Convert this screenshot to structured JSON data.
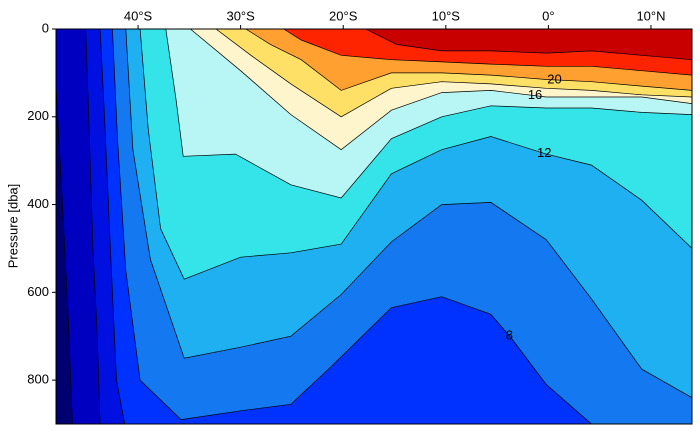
{
  "chart_data": {
    "type": "contour",
    "ylabel": "Pressure [dba]",
    "xlim": [
      -48,
      14
    ],
    "ylim": [
      0,
      900
    ],
    "y_inverted": true,
    "x_axis_position": "top",
    "xticks": [
      {
        "value": -40,
        "label": "40°S"
      },
      {
        "value": -30,
        "label": "30°S"
      },
      {
        "value": -20,
        "label": "20°S"
      },
      {
        "value": -10,
        "label": "10°S"
      },
      {
        "value": 0,
        "label": "0°"
      },
      {
        "value": 10,
        "label": "10°N"
      }
    ],
    "yticks": [
      0,
      200,
      400,
      600,
      800
    ],
    "base_color": "#000070",
    "line_color": "#000000",
    "contours": [
      {
        "level": 2,
        "color": "#0000c0",
        "x": [
          -48,
          -47.4,
          -46.8,
          -46.4
        ],
        "y": [
          125,
          390,
          660,
          900
        ]
      },
      {
        "level": 4,
        "color": "#0010e0",
        "x": [
          -45.1,
          -44.8,
          -44.4,
          -44.0,
          -43.7
        ],
        "y": [
          0,
          205,
          500,
          685,
          900
        ]
      },
      {
        "level": 6,
        "color": "#0032ff",
        "x": [
          -43.7,
          -43.3,
          -42.7,
          -42.1,
          -41.3
        ],
        "y": [
          0,
          185,
          500,
          800,
          900
        ]
      },
      {
        "level": 8,
        "color": "#1478f0",
        "x": [
          -42.5,
          -42.0,
          -41.2,
          -39.8,
          -35.8,
          -30.0,
          -25.1,
          -21.2,
          -15.3,
          -10.4,
          -5.6,
          -3.6,
          -0.2,
          4.2
        ],
        "y": [
          0,
          250,
          550,
          800,
          890,
          870,
          855,
          770,
          635,
          610,
          650,
          705,
          810,
          900
        ]
      },
      {
        "level": 10,
        "color": "#1eb0f0",
        "x": [
          -41.2,
          -40.5,
          -38.8,
          -35.5,
          -30.0,
          -25.1,
          -20.2,
          -15.3,
          -10.4,
          -5.6,
          -0.2,
          4.2,
          9.1,
          14
        ],
        "y": [
          0,
          275,
          525,
          750,
          725,
          700,
          605,
          485,
          400,
          395,
          480,
          615,
          775,
          840
        ]
      },
      {
        "level": 12,
        "color": "#35e4e8",
        "x": [
          -39.8,
          -39.0,
          -37.8,
          -35.5,
          -30.0,
          -25.1,
          -20.2,
          -15.3,
          -10.4,
          -5.6,
          -0.2,
          4.2,
          9.1,
          14
        ],
        "y": [
          0,
          230,
          455,
          570,
          520,
          510,
          490,
          330,
          275,
          245,
          285,
          310,
          390,
          500
        ]
      },
      {
        "level": 14,
        "color": "#b8f5f5",
        "x": [
          -37.3,
          -36.3,
          -35.6,
          -30.5,
          -25.1,
          -20.2,
          -15.3,
          -10.4,
          -5.6,
          -0.2,
          4.2,
          9.1,
          14
        ],
        "y": [
          0,
          160,
          290,
          285,
          355,
          385,
          250,
          200,
          175,
          180,
          180,
          190,
          195
        ]
      },
      {
        "level": 16,
        "color": "#fff5cc",
        "x": [
          -34.9,
          -30.0,
          -25.1,
          -20.2,
          -15.3,
          -10.4,
          -5.6,
          -0.2,
          4.2,
          9.1,
          14
        ],
        "y": [
          0,
          95,
          195,
          275,
          185,
          145,
          140,
          155,
          155,
          155,
          170
        ]
      },
      {
        "level": 18,
        "color": "#ffe066",
        "x": [
          -32.4,
          -29.0,
          -25.1,
          -20.2,
          -15.3,
          -10.4,
          -5.6,
          -0.2,
          4.2,
          9.1,
          14
        ],
        "y": [
          0,
          60,
          125,
          200,
          135,
          120,
          125,
          135,
          140,
          150,
          155
        ]
      },
      {
        "level": 20,
        "color": "#ffa030",
        "x": [
          -29.5,
          -27.1,
          -24.1,
          -20.2,
          -15.3,
          -10.4,
          -5.6,
          -0.2,
          4.2,
          9.1,
          14
        ],
        "y": [
          0,
          35,
          70,
          140,
          100,
          100,
          105,
          115,
          120,
          130,
          140
        ]
      },
      {
        "level": 22,
        "color": "#ff2400",
        "x": [
          -25.8,
          -24.1,
          -20.2,
          -15.3,
          -10.4,
          -5.6,
          -0.2,
          4.2,
          9.1,
          14
        ],
        "y": [
          0,
          25,
          60,
          70,
          75,
          80,
          85,
          85,
          95,
          105
        ]
      },
      {
        "level": 24,
        "color": "#c80000",
        "x": [
          -17.8,
          -14.8,
          -10.4,
          -5.6,
          -0.2,
          4.2,
          9.1,
          14
        ],
        "y": [
          0,
          35,
          50,
          50,
          55,
          50,
          60,
          70
        ]
      }
    ],
    "contour_labels": [
      20,
      16,
      12,
      8
    ]
  }
}
